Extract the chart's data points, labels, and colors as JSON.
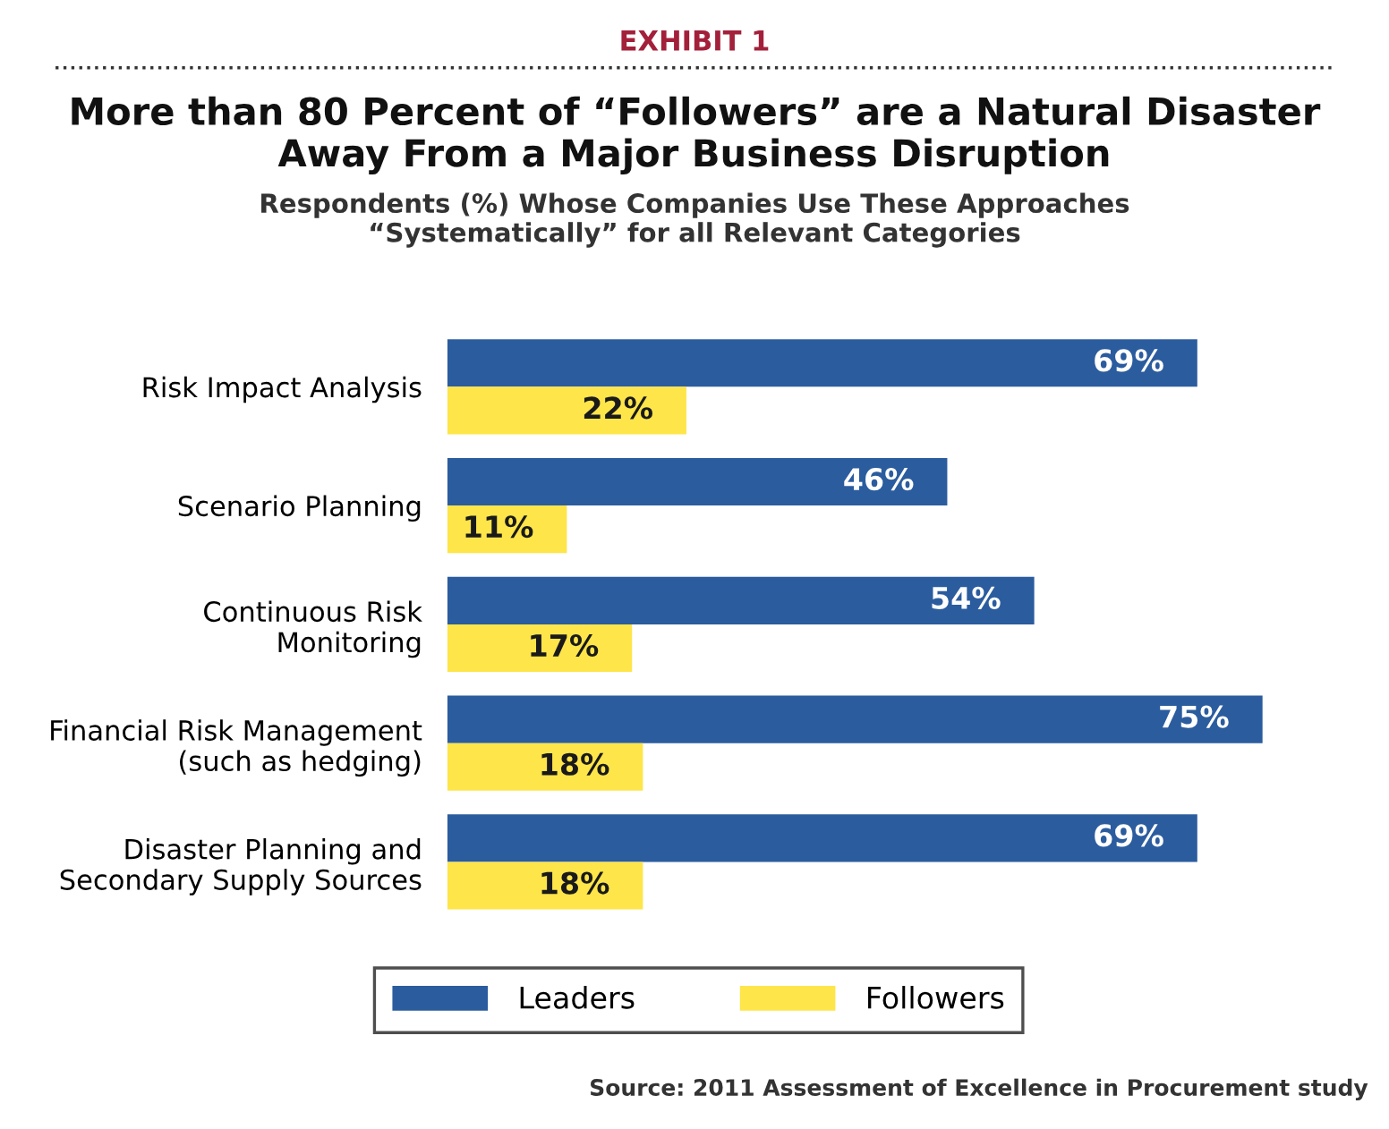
{
  "chart_data": {
    "type": "bar",
    "orientation": "horizontal",
    "title": "More than 80 Percent of “Followers” are a Natural Disaster\nAway From a Major Business Disruption",
    "subtitle": "Respondents (%) Whose Companies Use These Approaches\n“Systematically” for all Relevant Categories",
    "categories": [
      "Risk Impact Analysis",
      "Scenario Planning",
      "Continuous Risk\nMonitoring",
      "Financial Risk Management\n(such as hedging)",
      "Disaster Planning and\nSecondary Supply Sources"
    ],
    "series": [
      {
        "name": "Leaders",
        "color": "#2b5c9e",
        "values": [
          69,
          46,
          54,
          75,
          69
        ],
        "value_labels": [
          "69%",
          "46%",
          "54%",
          "75%",
          "69%"
        ]
      },
      {
        "name": "Followers",
        "color": "#fee54a",
        "values": [
          22,
          11,
          17,
          18,
          18
        ],
        "value_labels": [
          "22%",
          "11%",
          "17%",
          "18%",
          "18%"
        ]
      }
    ],
    "legend": "bottom",
    "annotations": [
      "EXHIBIT 1",
      "Source: 2011 Assessment of Excellence in Procurement study"
    ]
  }
}
